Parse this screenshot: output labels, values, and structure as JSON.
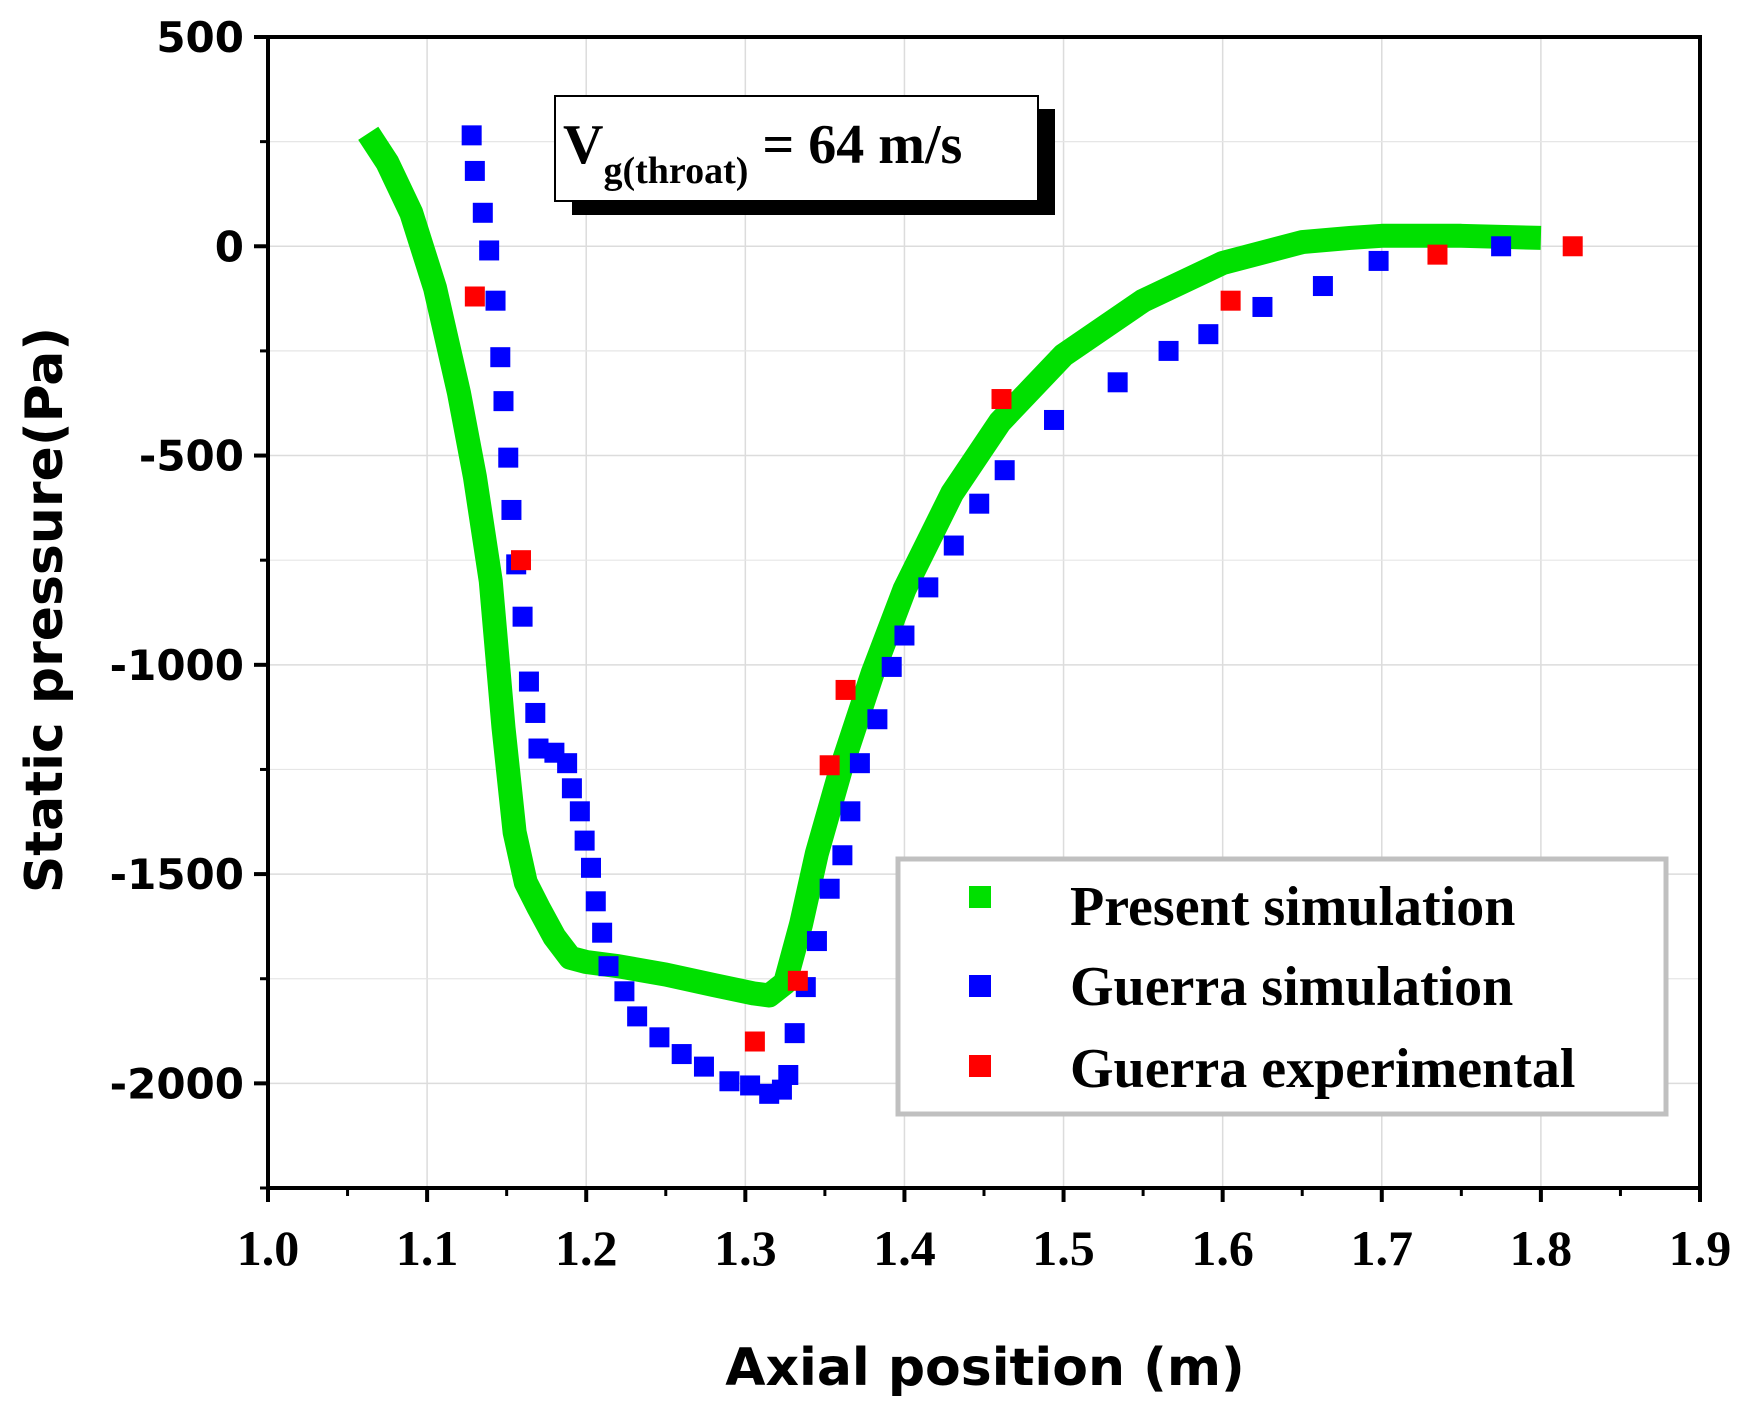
{
  "chart_data": {
    "type": "scatter",
    "title": "",
    "xlabel": "Axial position (m)",
    "ylabel": "Static pressure(Pa)",
    "xlim": [
      1.0,
      1.9
    ],
    "ylim": [
      -2250,
      500
    ],
    "x_ticks": [
      "1.0",
      "1.1",
      "1.2",
      "1.3",
      "1.4",
      "1.5",
      "1.6",
      "1.7",
      "1.8",
      "1.9"
    ],
    "y_ticks": [
      "500",
      "0",
      "-500",
      "-1000",
      "-1500",
      "-2000"
    ],
    "grid": true,
    "legend_position": "bottom-right",
    "annotation": {
      "main": "V",
      "subscript": "g(throat)",
      "rest": " = 64 m/s"
    },
    "series": [
      {
        "name": "Present simulation",
        "color": "#00e000",
        "style": "thick-line",
        "x": [
          1.063,
          1.075,
          1.09,
          1.105,
          1.12,
          1.13,
          1.14,
          1.148,
          1.155,
          1.162,
          1.17,
          1.18,
          1.19,
          1.2,
          1.22,
          1.25,
          1.28,
          1.305,
          1.315,
          1.325,
          1.335,
          1.345,
          1.36,
          1.38,
          1.4,
          1.43,
          1.46,
          1.5,
          1.55,
          1.6,
          1.65,
          1.68,
          1.7,
          1.75,
          1.8
        ],
        "values": [
          270,
          200,
          80,
          -100,
          -350,
          -550,
          -800,
          -1150,
          -1400,
          -1520,
          -1580,
          -1650,
          -1700,
          -1710,
          -1720,
          -1740,
          -1765,
          -1785,
          -1790,
          -1760,
          -1620,
          -1450,
          -1250,
          -1020,
          -820,
          -590,
          -420,
          -260,
          -130,
          -40,
          10,
          20,
          25,
          25,
          20
        ]
      },
      {
        "name": "Guerra simulation",
        "color": "#0000ff",
        "style": "square-marker",
        "x": [
          1.128,
          1.13,
          1.135,
          1.139,
          1.143,
          1.146,
          1.148,
          1.151,
          1.153,
          1.156,
          1.16,
          1.164,
          1.168,
          1.17,
          1.18,
          1.188,
          1.191,
          1.196,
          1.199,
          1.203,
          1.206,
          1.21,
          1.214,
          1.224,
          1.232,
          1.246,
          1.26,
          1.274,
          1.29,
          1.303,
          1.315,
          1.323,
          1.327,
          1.331,
          1.338,
          1.345,
          1.353,
          1.361,
          1.366,
          1.372,
          1.383,
          1.392,
          1.4,
          1.415,
          1.431,
          1.447,
          1.463,
          1.494,
          1.534,
          1.566,
          1.591,
          1.625,
          1.663,
          1.698,
          1.775
        ],
        "values": [
          265,
          180,
          80,
          -10,
          -130,
          -265,
          -370,
          -505,
          -630,
          -760,
          -885,
          -1040,
          -1115,
          -1200,
          -1210,
          -1235,
          -1295,
          -1350,
          -1420,
          -1485,
          -1565,
          -1640,
          -1720,
          -1780,
          -1840,
          -1890,
          -1930,
          -1960,
          -1995,
          -2005,
          -2025,
          -2015,
          -1980,
          -1880,
          -1770,
          -1660,
          -1535,
          -1455,
          -1350,
          -1235,
          -1130,
          -1005,
          -930,
          -815,
          -715,
          -615,
          -535,
          -415,
          -325,
          -250,
          -210,
          -145,
          -95,
          -35,
          0
        ]
      },
      {
        "name": "Guerra experimental",
        "color": "#ff0000",
        "style": "square-marker",
        "x": [
          1.13,
          1.159,
          1.306,
          1.333,
          1.353,
          1.363,
          1.461,
          1.605,
          1.735,
          1.82
        ],
        "values": [
          -120,
          -750,
          -1900,
          -1755,
          -1240,
          -1060,
          -365,
          -130,
          -20,
          0
        ]
      }
    ]
  }
}
